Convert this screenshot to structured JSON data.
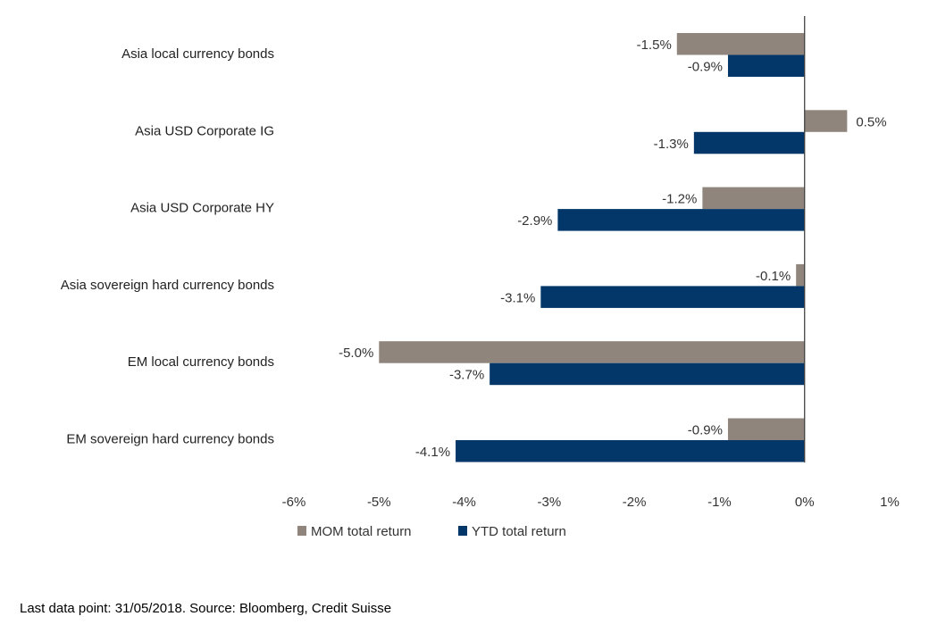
{
  "chart_data": {
    "type": "bar",
    "orientation": "horizontal",
    "title": "",
    "xlabel": "",
    "ylabel": "",
    "xlim": [
      -6,
      1
    ],
    "x_ticks": [
      -6,
      -5,
      -4,
      -3,
      -2,
      -1,
      0,
      1
    ],
    "x_tick_labels": [
      "-6%",
      "-5%",
      "-4%",
      "-3%",
      "-2%",
      "-1%",
      "0%",
      "1%"
    ],
    "grid": false,
    "legend_position": "bottom",
    "categories": [
      "Asia local currency bonds",
      "Asia USD Corporate  IG",
      "Asia USD Corporate HY",
      "Asia sovereign hard currency bonds",
      "EM local currency bonds",
      "EM sovereign hard currency bonds"
    ],
    "series": [
      {
        "name": "MOM total return",
        "color": "#8f857c",
        "values": [
          -1.5,
          0.5,
          -1.2,
          -0.1,
          -5.0,
          -0.9
        ],
        "labels": [
          "-1.5%",
          "0.5%",
          "-1.2%",
          "-0.1%",
          "-5.0%",
          "-0.9%"
        ]
      },
      {
        "name": "YTD total return",
        "color": "#033769",
        "values": [
          -0.9,
          -1.3,
          -2.9,
          -3.1,
          -3.7,
          -4.1
        ],
        "labels": [
          "-0.9%",
          "-1.3%",
          "-2.9%",
          "-3.1%",
          "-3.7%",
          "-4.1%"
        ]
      }
    ]
  },
  "footnote": "Last data point: 31/05/2018. Source: Bloomberg, Credit Suisse"
}
